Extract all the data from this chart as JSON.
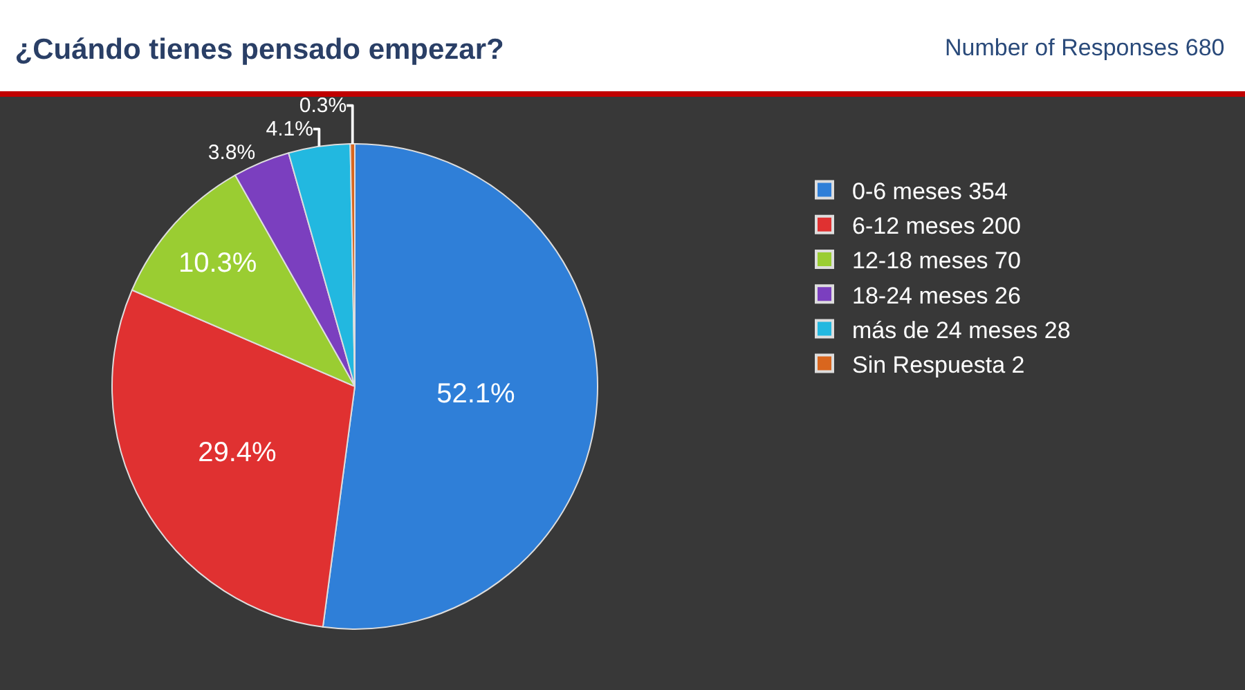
{
  "chart_data": {
    "type": "pie",
    "title": "¿Cuándo tienes pensado empezar?",
    "annotations": [
      "Number of Responses 680"
    ],
    "categories": [
      "0-6 meses 354",
      "6-12 meses 200",
      "12-18 meses 70",
      "18-24 meses 26",
      "más de 24 meses 28",
      "Sin Respuesta 2"
    ],
    "values": [
      52.1,
      29.4,
      10.3,
      3.8,
      4.1,
      0.3
    ],
    "value_labels": [
      "52.1%",
      "29.4%",
      "10.3%",
      "3.8%",
      "4.1%",
      "0.3%"
    ],
    "colors": [
      "#2f7fd8",
      "#e03131",
      "#9acd32",
      "#7b3fbf",
      "#22b8e0",
      "#d9661e"
    ],
    "legend": "right"
  }
}
